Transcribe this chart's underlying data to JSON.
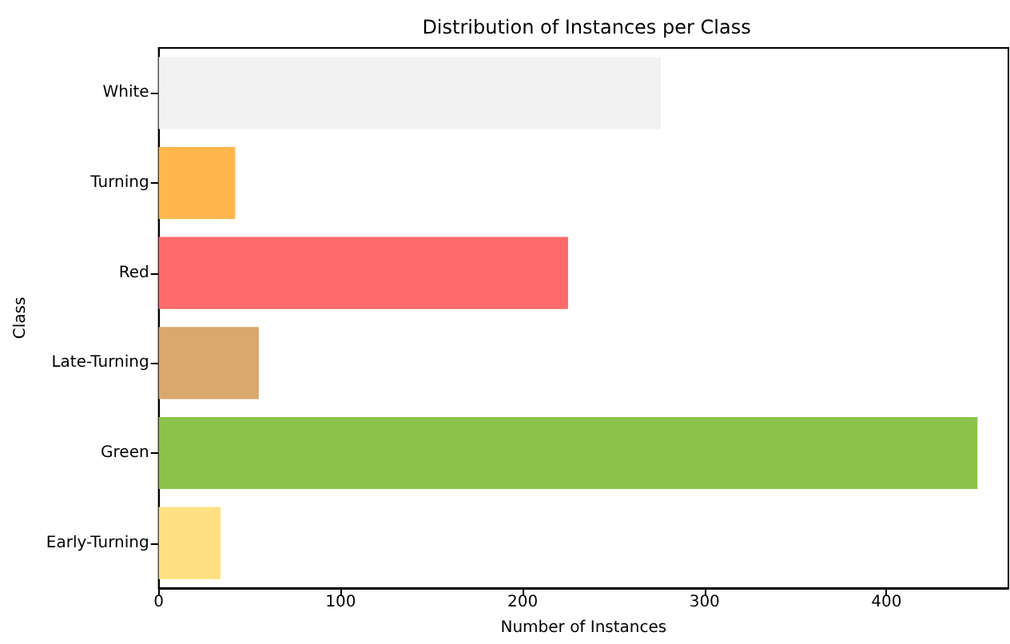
{
  "chart_data": {
    "type": "bar",
    "orientation": "horizontal",
    "title": "Distribution of Instances per Class",
    "xlabel": "Number of Instances",
    "ylabel": "Class",
    "categories": [
      "White",
      "Turning",
      "Red",
      "Late-Turning",
      "Green",
      "Early-Turning"
    ],
    "values": [
      276,
      42,
      225,
      55,
      450,
      34
    ],
    "colors": [
      "#f2f2f2",
      "#ffb74d",
      "#ff6b6b",
      "#d8a86c",
      "#8bc34a",
      "#ffe082"
    ],
    "xlim": [
      0,
      467
    ],
    "xticks": [
      0,
      100,
      200,
      300,
      400
    ],
    "grid": false
  }
}
